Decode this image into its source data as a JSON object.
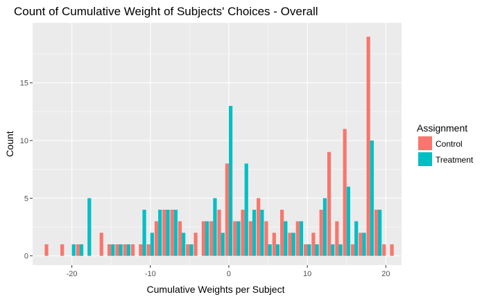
{
  "chart_data": {
    "type": "bar",
    "title": "Count of Cumulative Weight of Subjects' Choices - Overall",
    "xlabel": "Cumulative Weights per Subject",
    "ylabel": "Count",
    "xlim": [
      -25,
      22
    ],
    "ylim": [
      -0.8,
      20.2
    ],
    "x_ticks": [
      -20,
      -10,
      0,
      10,
      20
    ],
    "y_ticks": [
      0,
      5,
      10,
      15
    ],
    "grid": true,
    "legend_position": "right",
    "legend": {
      "title": "Assignment",
      "entries": [
        "Control",
        "Treatment"
      ]
    },
    "colors": {
      "Control": "#F8766D",
      "Treatment": "#00BFC4",
      "panel": "#EBEBEB",
      "grid": "#FFFFFF"
    },
    "series": [
      {
        "name": "Control",
        "x": [
          -23,
          -21,
          -19,
          -16,
          -15,
          -14,
          -13,
          -12,
          -11,
          -10,
          -9,
          -8,
          -7,
          -6,
          -5,
          -4,
          -3,
          -2,
          -1,
          0,
          1,
          2,
          3,
          4,
          5,
          6,
          7,
          8,
          9,
          10,
          11,
          12,
          13,
          14,
          15,
          16,
          17,
          18,
          19,
          20,
          21
        ],
        "values": [
          1,
          1,
          1,
          2,
          1,
          1,
          1,
          1,
          1,
          1,
          3,
          4,
          4,
          3,
          1,
          2,
          3,
          3,
          4,
          8,
          3,
          4,
          3,
          5,
          3,
          2,
          4,
          2,
          3,
          1,
          2,
          4,
          9,
          3,
          11,
          1,
          2,
          19,
          4,
          1,
          1
        ]
      },
      {
        "name": "Treatment",
        "x": [
          -20,
          -19,
          -18,
          -15,
          -14,
          -13,
          -11,
          -10,
          -9,
          -8,
          -7,
          -6,
          -5,
          -3,
          -2,
          -1,
          0,
          1,
          2,
          3,
          4,
          5,
          6,
          7,
          8,
          9,
          10,
          11,
          12,
          13,
          14,
          15,
          16,
          17,
          18,
          19
        ],
        "values": [
          1,
          1,
          5,
          1,
          1,
          1,
          4,
          2,
          4,
          4,
          4,
          2,
          1,
          3,
          5,
          2,
          13,
          3,
          8,
          4,
          4,
          1,
          1,
          3,
          2,
          3,
          1,
          1,
          5,
          1,
          1,
          6,
          3,
          2,
          10,
          4
        ]
      }
    ]
  }
}
